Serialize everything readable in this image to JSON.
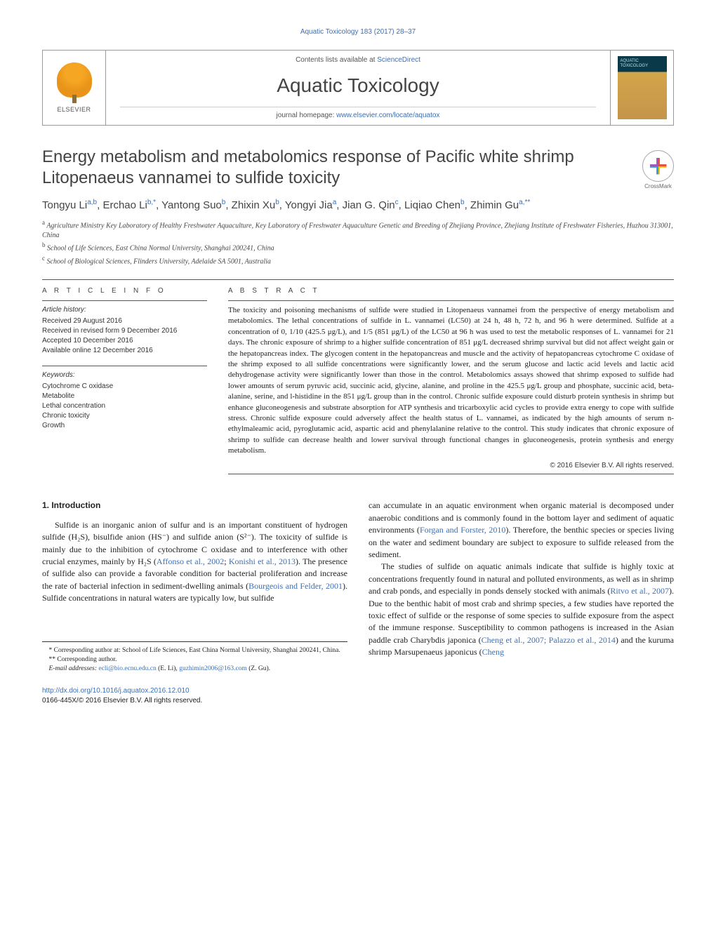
{
  "running_head": "Aquatic Toxicology 183 (2017) 28–37",
  "masthead": {
    "contents_prefix": "Contents lists available at ",
    "contents_link": "ScienceDirect",
    "journal_name": "Aquatic Toxicology",
    "homepage_prefix": "journal homepage: ",
    "homepage_link": "www.elsevier.com/locate/aquatox",
    "publisher_label": "ELSEVIER"
  },
  "crossmark_label": "CrossMark",
  "title": "Energy metabolism and metabolomics response of Pacific white shrimp Litopenaeus vannamei to sulfide toxicity",
  "authors_html": "Tongyu Li<sup>a,b</sup>, Erchao Li<sup>b,*</sup>, Yantong Suo<sup>b</sup>, Zhixin Xu<sup>b</sup>, Yongyi Jia<sup>a</sup>, Jian G. Qin<sup>c</sup>, Liqiao Chen<sup>b</sup>, Zhimin Gu<sup>a,**</sup>",
  "affiliations": [
    {
      "sup": "a",
      "text": "Agriculture Ministry Key Laboratory of Healthy Freshwater Aquaculture, Key Laboratory of Freshwater Aquaculture Genetic and Breeding of Zhejiang Province, Zhejiang Institute of Freshwater Fisheries, Huzhou 313001, China"
    },
    {
      "sup": "b",
      "text": "School of Life Sciences, East China Normal University, Shanghai 200241, China"
    },
    {
      "sup": "c",
      "text": "School of Biological Sciences, Flinders University, Adelaide SA 5001, Australia"
    }
  ],
  "article_info": {
    "label": "A R T I C L E    I N F O",
    "history_head": "Article history:",
    "history": [
      "Received 29 August 2016",
      "Received in revised form 9 December 2016",
      "Accepted 10 December 2016",
      "Available online 12 December 2016"
    ],
    "keywords_head": "Keywords:",
    "keywords": [
      "Cytochrome C oxidase",
      "Metabolite",
      "Lethal concentration",
      "Chronic toxicity",
      "Growth"
    ]
  },
  "abstract": {
    "label": "A B S T R A C T",
    "text": "The toxicity and poisoning mechanisms of sulfide were studied in Litopenaeus vannamei from the perspective of energy metabolism and metabolomics. The lethal concentrations of sulfide in L. vannamei (LC50) at 24 h, 48 h, 72 h, and 96 h were determined. Sulfide at a concentration of 0, 1/10 (425.5 μg/L), and 1/5 (851 μg/L) of the LC50 at 96 h was used to test the metabolic responses of L. vannamei for 21 days. The chronic exposure of shrimp to a higher sulfide concentration of 851 μg/L decreased shrimp survival but did not affect weight gain or the hepatopancreas index. The glycogen content in the hepatopancreas and muscle and the activity of hepatopancreas cytochrome C oxidase of the shrimp exposed to all sulfide concentrations were significantly lower, and the serum glucose and lactic acid levels and lactic acid dehydrogenase activity were significantly lower than those in the control. Metabolomics assays showed that shrimp exposed to sulfide had lower amounts of serum pyruvic acid, succinic acid, glycine, alanine, and proline in the 425.5 μg/L group and phosphate, succinic acid, beta-alanine, serine, and l-histidine in the 851 μg/L group than in the control. Chronic sulfide exposure could disturb protein synthesis in shrimp but enhance gluconeogenesis and substrate absorption for ATP synthesis and tricarboxylic acid cycles to provide extra energy to cope with sulfide stress. Chronic sulfide exposure could adversely affect the health status of L. vannamei, as indicated by the high amounts of serum n-ethylmaleamic acid, pyroglutamic acid, aspartic acid and phenylalanine relative to the control. This study indicates that chronic exposure of shrimp to sulfide can decrease health and lower survival through functional changes in gluconeogenesis, protein synthesis and energy metabolism.",
    "copyright": "© 2016 Elsevier B.V. All rights reserved."
  },
  "intro": {
    "heading": "1. Introduction",
    "p1_pre": "Sulfide is an inorganic anion of sulfur and is an important constituent of hydrogen sulfide (H₂S), bisulfide anion (HS⁻) and sulfide anion (S²⁻). The toxicity of sulfide is mainly due to the inhibition of cytochrome C oxidase and to interference with other crucial enzymes, mainly by H₂S (",
    "p1_link1": "Affonso et al., 2002",
    "p1_mid1": "; ",
    "p1_link2": "Konishi et al., 2013",
    "p1_mid2": "). The presence of sulfide also can provide a favorable condition for bacterial proliferation and increase the rate of bacterial infection in sediment-dwelling animals (",
    "p1_link3": "Bourgeois and Felder, 2001",
    "p1_post": "). Sulfide concentrations in natural waters are typically low, but sulfide",
    "p2_pre": "can accumulate in an aquatic environment when organic material is decomposed under anaerobic conditions and is commonly found in the bottom layer and sediment of aquatic environments (",
    "p2_link1": "Forgan and Forster, 2010",
    "p2_post": "). Therefore, the benthic species or species living on the water and sediment boundary are subject to exposure to sulfide released from the sediment.",
    "p3_pre": "The studies of sulfide on aquatic animals indicate that sulfide is highly toxic at concentrations frequently found in natural and polluted environments, as well as in shrimp and crab ponds, and especially in ponds densely stocked with animals (",
    "p3_link1": "Ritvo et al., 2007",
    "p3_mid1": "). Due to the benthic habit of most crab and shrimp species, a few studies have reported the toxic effect of sulfide or the response of some species to sulfide exposure from the aspect of the immune response. Susceptibility to common pathogens is increased in the Asian paddle crab Charybdis japonica (",
    "p3_link2": "Cheng et al., 2007; Palazzo et al., 2014",
    "p3_mid2": ") and the kuruma shrimp Marsupenaeus japonicus (",
    "p3_link3": "Cheng"
  },
  "footnotes": {
    "fn1_pre": "* Corresponding author at: School of Life Sciences, East China Normal University, Shanghai 200241, China.",
    "fn2": "** Corresponding author.",
    "fn3_pre": "E-mail addresses: ",
    "fn3_email1": "ecli@bio.ecnu.edu.cn",
    "fn3_mid1": " (E. Li), ",
    "fn3_email2": "guzhimin2006@163.com",
    "fn3_post": " (Z. Gu)."
  },
  "doi": {
    "url": "http://dx.doi.org/10.1016/j.aquatox.2016.12.010",
    "issn_line": "0166-445X/© 2016 Elsevier B.V. All rights reserved."
  },
  "colors": {
    "link": "#3b6fb6",
    "text": "#222222",
    "muted": "#555555",
    "rule": "#555555"
  }
}
